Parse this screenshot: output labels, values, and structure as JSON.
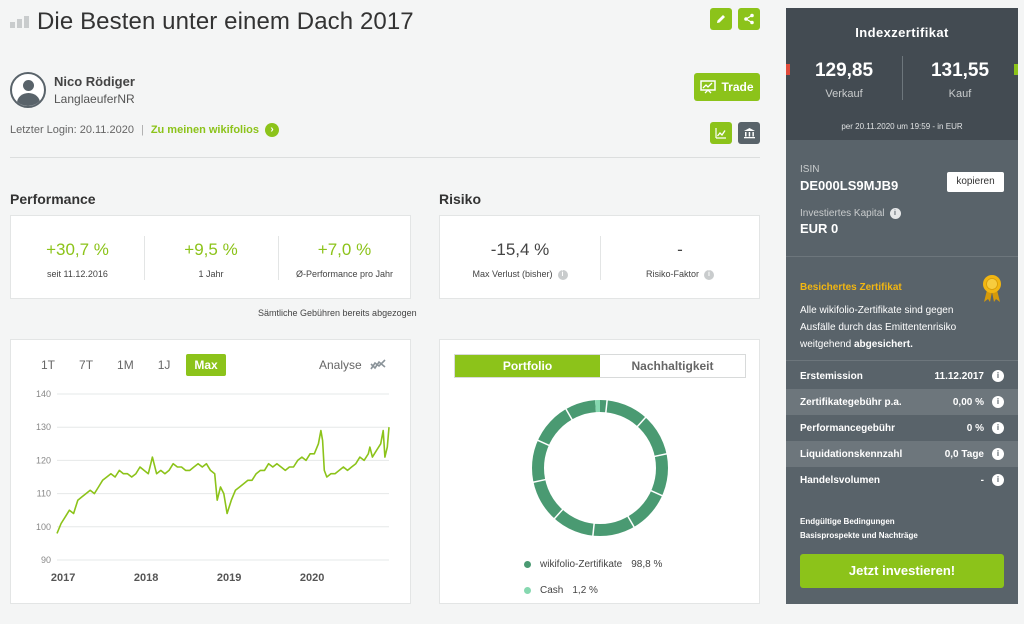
{
  "header": {
    "title": "Die Besten unter einem Dach 2017"
  },
  "author": {
    "name": "Nico Rödiger",
    "nickname": "LanglaeuferNR",
    "login_label": "Letzter Login: 20.11.2020",
    "separator": "|",
    "link_label": "Zu meinen wikifolios"
  },
  "actions": {
    "trade_label": "Trade"
  },
  "performance": {
    "title": "Performance",
    "items": [
      {
        "value": "+30,7 %",
        "label": "seit 11.12.2016"
      },
      {
        "value": "+9,5 %",
        "label": "1 Jahr"
      },
      {
        "value": "+7,0 %",
        "label": "Ø-Performance pro Jahr"
      }
    ],
    "fee_note": "Sämtliche Gebühren bereits abgezogen"
  },
  "risk": {
    "title": "Risiko",
    "items": [
      {
        "value": "-15,4 %",
        "label": "Max Verlust (bisher)"
      },
      {
        "value": "-",
        "label": "Risiko-Faktor"
      }
    ]
  },
  "chart_controls": {
    "ranges": [
      "1T",
      "7T",
      "1M",
      "1J",
      "Max"
    ],
    "active_range": "Max",
    "analyse_label": "Analyse"
  },
  "chart_data": [
    {
      "type": "line",
      "x_ticks": [
        "2017",
        "2018",
        "2019",
        "2020"
      ],
      "y_ticks": [
        90,
        100,
        110,
        120,
        130,
        140
      ],
      "ylim": [
        90,
        140
      ],
      "xlim": [
        2016.95,
        2020.95
      ],
      "grid": true,
      "color": "#8cc31a",
      "x": [
        2016.95,
        2017.0,
        2017.05,
        2017.1,
        2017.15,
        2017.2,
        2017.25,
        2017.3,
        2017.35,
        2017.4,
        2017.45,
        2017.5,
        2017.55,
        2017.6,
        2017.65,
        2017.7,
        2017.75,
        2017.8,
        2017.85,
        2017.9,
        2017.95,
        2018.0,
        2018.05,
        2018.08,
        2018.1,
        2018.15,
        2018.2,
        2018.25,
        2018.3,
        2018.35,
        2018.4,
        2018.45,
        2018.5,
        2018.55,
        2018.6,
        2018.65,
        2018.7,
        2018.75,
        2018.8,
        2018.85,
        2018.88,
        2018.92,
        2018.96,
        2019.0,
        2019.05,
        2019.1,
        2019.15,
        2019.2,
        2019.25,
        2019.3,
        2019.35,
        2019.4,
        2019.45,
        2019.5,
        2019.55,
        2019.6,
        2019.65,
        2019.7,
        2019.75,
        2019.8,
        2019.85,
        2019.9,
        2019.95,
        2020.0,
        2020.05,
        2020.1,
        2020.13,
        2020.15,
        2020.17,
        2020.2,
        2020.25,
        2020.3,
        2020.35,
        2020.4,
        2020.45,
        2020.5,
        2020.55,
        2020.6,
        2020.65,
        2020.7,
        2020.72,
        2020.75,
        2020.8,
        2020.85,
        2020.88,
        2020.9,
        2020.93,
        2020.95
      ],
      "y": [
        98,
        101,
        103,
        105,
        104,
        108,
        109,
        110,
        111,
        110,
        112,
        114,
        115,
        116,
        115,
        117,
        116,
        116,
        115,
        116,
        118,
        117,
        116,
        119,
        121,
        116,
        117,
        116,
        117,
        119,
        118,
        118,
        117,
        117,
        118,
        119,
        118,
        119,
        117,
        116,
        108,
        112,
        110,
        104,
        108,
        111,
        112,
        113,
        114,
        114,
        116,
        117,
        117,
        119,
        118,
        119,
        118,
        117,
        118,
        118,
        120,
        121,
        120,
        122,
        122,
        125,
        129,
        126,
        117,
        115,
        116,
        116,
        117,
        118,
        117,
        118,
        119,
        121,
        120,
        122,
        124,
        121,
        123,
        125,
        129,
        121,
        124,
        130
      ]
    },
    {
      "type": "pie",
      "labels": [
        "wikifolio-Zertifikate",
        "Cash"
      ],
      "values": [
        98.8,
        1.2
      ],
      "colors": [
        "#4a9a72",
        "#86d8b0"
      ]
    }
  ],
  "allocation": {
    "tabs": [
      "Portfolio",
      "Nachhaltigkeit"
    ],
    "active_tab": "Portfolio",
    "legend": [
      {
        "label": "wikifolio-Zertifikate",
        "value": "98,8 %"
      },
      {
        "label": "Cash",
        "value": "1,2 %"
      }
    ]
  },
  "sidebar": {
    "title": "Indexzertifikat",
    "sell_value": "129,85",
    "sell_label": "Verkauf",
    "buy_value": "131,55",
    "buy_label": "Kauf",
    "price_date": "per 20.11.2020 um 19:59 - in EUR",
    "isin_label": "ISIN",
    "isin_value": "DE000LS9MJB9",
    "copy_label": "kopieren",
    "capital_label": "Investiertes Kapital",
    "capital_value": "EUR 0",
    "secured_title": "Besichertes Zertifikat",
    "secured_text": "Alle wikifolio-Zertifikate sind gegen Ausfälle durch das Emittentenrisiko weitgehend",
    "secured_bold": "abgesichert.",
    "details": [
      {
        "key": "Erstemission",
        "value": "11.12.2017"
      },
      {
        "key": "Zertifikategebühr p.a.",
        "value": "0,00 %"
      },
      {
        "key": "Performancegebühr",
        "value": "0 %"
      },
      {
        "key": "Liquidationskennzahl",
        "value": "0,0 Tage"
      },
      {
        "key": "Handelsvolumen",
        "value": "-"
      }
    ],
    "link_conditions": "Endgültige Bedingungen",
    "link_prospectus": "Basisprospekte und Nachträge",
    "invest_label": "Jetzt investieren!"
  },
  "colors": {
    "accent": "#8cc31a",
    "sidebar_bg": "#59636a",
    "sidebar_head": "#434b52",
    "gold": "#f2b611",
    "sell_marker": "#e04a3b"
  }
}
